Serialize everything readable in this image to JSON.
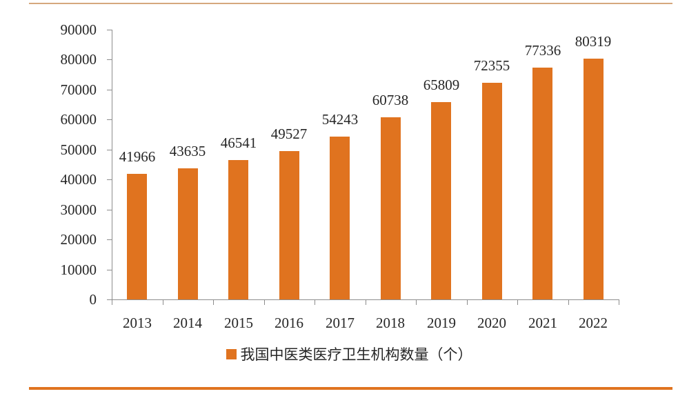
{
  "page": {
    "background": "#FFFFFF",
    "top_rule_color": "#D5A87D",
    "bottom_rule_color": "#E0731F"
  },
  "chart_data": {
    "type": "bar",
    "title": "",
    "categories": [
      "2013",
      "2014",
      "2015",
      "2016",
      "2017",
      "2018",
      "2019",
      "2020",
      "2021",
      "2022"
    ],
    "series": [
      {
        "name": "我国中医类医疗卫生机构数量（个）",
        "values": [
          41966,
          43635,
          46541,
          49527,
          54243,
          60738,
          65809,
          72355,
          77336,
          80319
        ]
      }
    ],
    "legend": "我国中医类医疗卫生机构数量（个）",
    "legend_position": "bottom",
    "legend_swatch": "square",
    "xlabel": "",
    "ylabel": "",
    "ylim": [
      0,
      90000
    ],
    "yticks": [
      0,
      10000,
      20000,
      30000,
      40000,
      50000,
      60000,
      70000,
      80000,
      90000
    ],
    "grid": false,
    "data_labels": true,
    "bar_color": "#E0731F",
    "axis_color": "#8C8C8C",
    "text_color": "#262626"
  }
}
